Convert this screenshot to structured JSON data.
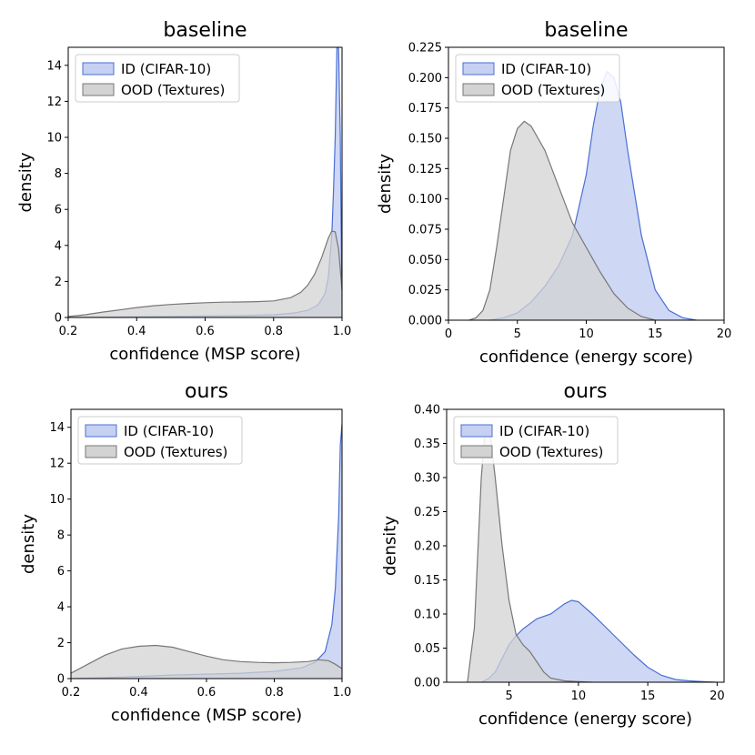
{
  "chart_data": [
    {
      "type": "area",
      "title": "baseline",
      "xlabel": "confidence (MSP score)",
      "ylabel": "density",
      "xlim": [
        0.2,
        1.0
      ],
      "ylim": [
        0,
        15
      ],
      "xticks": [
        0.2,
        0.4,
        0.6,
        0.8,
        1.0
      ],
      "xtick_labels": [
        "0.2",
        "0.4",
        "0.6",
        "0.8",
        "1.0"
      ],
      "yticks": [
        0,
        2,
        4,
        6,
        8,
        10,
        12,
        14
      ],
      "ytick_labels": [
        "0",
        "2",
        "4",
        "6",
        "8",
        "10",
        "12",
        "14"
      ],
      "legend": "top-left",
      "series": [
        {
          "name": "ID (CIFAR-10)",
          "color": "#4a6fd4",
          "fill": "#c5d0f2",
          "x": [
            0.2,
            0.3,
            0.4,
            0.5,
            0.6,
            0.7,
            0.8,
            0.86,
            0.9,
            0.93,
            0.95,
            0.96,
            0.97,
            0.975,
            0.98,
            0.985,
            0.99,
            0.995,
            1.0
          ],
          "y": [
            0,
            0.02,
            0.04,
            0.06,
            0.08,
            0.1,
            0.15,
            0.25,
            0.4,
            0.7,
            1.3,
            2.2,
            4.5,
            7.0,
            10.0,
            15.0,
            15.0,
            10.0,
            0
          ]
        },
        {
          "name": "OOD (Textures)",
          "color": "#777777",
          "fill": "#d3d3d3",
          "x": [
            0.2,
            0.25,
            0.3,
            0.35,
            0.4,
            0.45,
            0.5,
            0.55,
            0.6,
            0.65,
            0.7,
            0.75,
            0.8,
            0.85,
            0.88,
            0.9,
            0.92,
            0.94,
            0.96,
            0.97,
            0.98,
            0.99,
            1.0
          ],
          "y": [
            0.05,
            0.15,
            0.3,
            0.42,
            0.55,
            0.65,
            0.72,
            0.78,
            0.82,
            0.85,
            0.86,
            0.88,
            0.92,
            1.1,
            1.4,
            1.8,
            2.4,
            3.3,
            4.4,
            4.8,
            4.75,
            3.8,
            1.5
          ]
        }
      ]
    },
    {
      "type": "area",
      "title": "baseline",
      "xlabel": "confidence (energy score)",
      "ylabel": "density",
      "xlim": [
        0,
        20
      ],
      "ylim": [
        0,
        0.225
      ],
      "xticks": [
        0,
        5,
        10,
        15,
        20
      ],
      "xtick_labels": [
        "0",
        "5",
        "10",
        "15",
        "20"
      ],
      "yticks": [
        0,
        0.025,
        0.05,
        0.075,
        0.1,
        0.125,
        0.15,
        0.175,
        0.2,
        0.225
      ],
      "ytick_labels": [
        "0.000",
        "0.025",
        "0.050",
        "0.075",
        "0.100",
        "0.125",
        "0.150",
        "0.175",
        "0.200",
        "0.225"
      ],
      "legend": "top-left",
      "series": [
        {
          "name": "ID (CIFAR-10)",
          "color": "#4a6fd4",
          "fill": "#c5d0f2",
          "x": [
            3,
            4,
            5,
            6,
            7,
            8,
            9,
            10,
            10.5,
            11,
            11.5,
            12,
            12.5,
            13,
            14,
            15,
            16,
            17,
            18
          ],
          "y": [
            0,
            0.002,
            0.006,
            0.015,
            0.028,
            0.045,
            0.07,
            0.12,
            0.16,
            0.19,
            0.205,
            0.2,
            0.18,
            0.14,
            0.07,
            0.025,
            0.008,
            0.002,
            0
          ]
        },
        {
          "name": "OOD (Textures)",
          "color": "#777777",
          "fill": "#d3d3d3",
          "x": [
            1.5,
            2,
            2.5,
            3,
            3.5,
            4,
            4.5,
            5,
            5.5,
            6,
            6.5,
            7,
            7.5,
            8,
            8.5,
            9,
            10,
            11,
            12,
            13,
            14,
            15
          ],
          "y": [
            0,
            0.002,
            0.008,
            0.025,
            0.06,
            0.1,
            0.14,
            0.158,
            0.164,
            0.16,
            0.15,
            0.14,
            0.125,
            0.11,
            0.095,
            0.08,
            0.06,
            0.04,
            0.022,
            0.01,
            0.003,
            0
          ]
        }
      ]
    },
    {
      "type": "area",
      "title": "ours",
      "xlabel": "confidence (MSP score)",
      "ylabel": "density",
      "xlim": [
        0.2,
        1.0
      ],
      "ylim": [
        0,
        15
      ],
      "xticks": [
        0.2,
        0.4,
        0.6,
        0.8,
        1.0
      ],
      "xtick_labels": [
        "0.2",
        "0.4",
        "0.6",
        "0.8",
        "1.0"
      ],
      "yticks": [
        0,
        2,
        4,
        6,
        8,
        10,
        12,
        14
      ],
      "ytick_labels": [
        "0",
        "2",
        "4",
        "6",
        "8",
        "10",
        "12",
        "14"
      ],
      "legend": "top-left",
      "series": [
        {
          "name": "ID (CIFAR-10)",
          "color": "#4a6fd4",
          "fill": "#c5d0f2",
          "x": [
            0.2,
            0.3,
            0.4,
            0.5,
            0.6,
            0.7,
            0.8,
            0.88,
            0.92,
            0.95,
            0.97,
            0.98,
            0.99,
            0.995,
            1.0
          ],
          "y": [
            0,
            0.05,
            0.12,
            0.2,
            0.25,
            0.3,
            0.4,
            0.6,
            0.9,
            1.5,
            3.0,
            5.0,
            9.0,
            13.0,
            14.2
          ]
        },
        {
          "name": "OOD (Textures)",
          "color": "#777777",
          "fill": "#d3d3d3",
          "x": [
            0.2,
            0.25,
            0.3,
            0.35,
            0.4,
            0.45,
            0.5,
            0.55,
            0.6,
            0.65,
            0.7,
            0.75,
            0.8,
            0.85,
            0.9,
            0.93,
            0.96,
            0.98,
            1.0
          ],
          "y": [
            0.3,
            0.8,
            1.3,
            1.65,
            1.8,
            1.85,
            1.75,
            1.5,
            1.25,
            1.05,
            0.95,
            0.9,
            0.88,
            0.9,
            0.95,
            1.05,
            1.0,
            0.8,
            0.55
          ]
        }
      ]
    },
    {
      "type": "area",
      "title": "ours",
      "xlabel": "confidence (energy score)",
      "ylabel": "density",
      "xlim": [
        0.5,
        20.5
      ],
      "ylim": [
        0,
        0.4
      ],
      "xticks": [
        5,
        10,
        15,
        20
      ],
      "xtick_labels": [
        "5",
        "10",
        "15",
        "20"
      ],
      "yticks": [
        0,
        0.05,
        0.1,
        0.15,
        0.2,
        0.25,
        0.3,
        0.35,
        0.4
      ],
      "ytick_labels": [
        "0.00",
        "0.05",
        "0.10",
        "0.15",
        "0.20",
        "0.25",
        "0.30",
        "0.35",
        "0.40"
      ],
      "legend": "top-left",
      "series": [
        {
          "name": "ID (CIFAR-10)",
          "color": "#4a6fd4",
          "fill": "#c5d0f2",
          "x": [
            3,
            3.5,
            4,
            4.5,
            5,
            5.5,
            6,
            7,
            8,
            9,
            9.5,
            10,
            11,
            12,
            13,
            14,
            15,
            16,
            17,
            18,
            19,
            20
          ],
          "y": [
            0,
            0.005,
            0.015,
            0.035,
            0.055,
            0.068,
            0.078,
            0.093,
            0.1,
            0.115,
            0.12,
            0.118,
            0.1,
            0.08,
            0.06,
            0.04,
            0.022,
            0.01,
            0.004,
            0.002,
            0.001,
            0
          ]
        },
        {
          "name": "OOD (Textures)",
          "color": "#777777",
          "fill": "#d3d3d3",
          "x": [
            2,
            2.5,
            3,
            3.3,
            3.6,
            4,
            4.5,
            5,
            5.5,
            6,
            6.5,
            7,
            7.5,
            8,
            9,
            10,
            11
          ],
          "y": [
            0,
            0.08,
            0.3,
            0.375,
            0.37,
            0.3,
            0.2,
            0.12,
            0.07,
            0.055,
            0.045,
            0.03,
            0.015,
            0.006,
            0.002,
            0.001,
            0
          ]
        }
      ]
    }
  ]
}
